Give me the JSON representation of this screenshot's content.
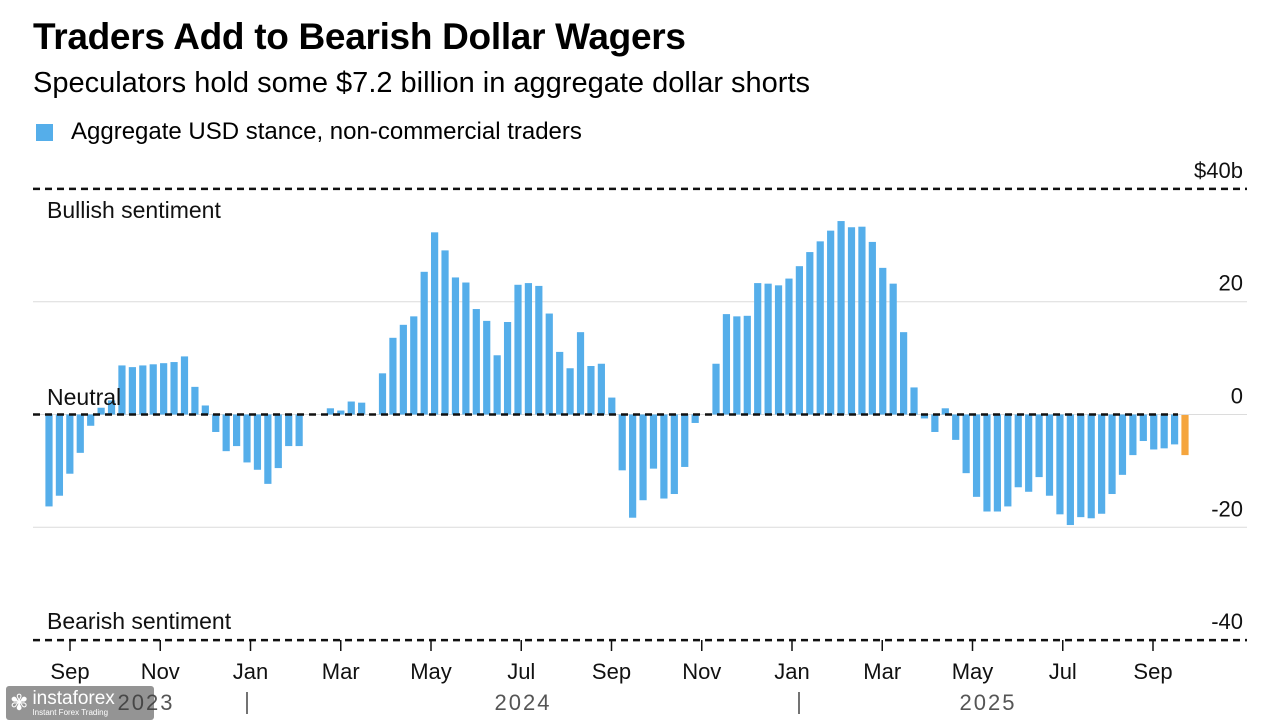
{
  "header": {
    "title": "Traders Add to Bearish Dollar Wagers",
    "subtitle": "Speculators hold some $7.2 billion in aggregate dollar shorts"
  },
  "legend": {
    "label": "Aggregate USD stance, non-commercial traders",
    "color": "#55aeea"
  },
  "watermark": {
    "brand": "instaforex",
    "tagline": "Instant Forex Trading"
  },
  "chart_data": {
    "type": "bar",
    "ylim": [
      -40,
      40
    ],
    "y_ticks": [
      {
        "value": 40,
        "label": "$40b"
      },
      {
        "value": 20,
        "label": "20"
      },
      {
        "value": 0,
        "label": "0"
      },
      {
        "value": -20,
        "label": "-20"
      },
      {
        "value": -40,
        "label": "-40"
      }
    ],
    "annotations": [
      {
        "id": "bullish",
        "text": "Bullish sentiment",
        "y": 40
      },
      {
        "id": "neutral",
        "text": "Neutral",
        "y": 0
      },
      {
        "id": "bearish",
        "text": "Bearish sentiment",
        "y": -40
      }
    ],
    "x_ticks": [
      "Sep",
      "Nov",
      "Jan",
      "Mar",
      "May",
      "Jul",
      "Sep",
      "Nov",
      "Jan",
      "Mar",
      "May",
      "Jul",
      "Sep"
    ],
    "year_labels": [
      "2023",
      "2024",
      "2025"
    ],
    "colors": {
      "series": "#55aeea",
      "latest": "#f5a53d"
    },
    "values": [
      -16.3,
      -14.4,
      -10.5,
      -6.8,
      -2.0,
      1.2,
      2.5,
      8.7,
      8.4,
      8.7,
      8.9,
      9.1,
      9.3,
      10.3,
      4.9,
      1.6,
      -3.1,
      -6.5,
      -5.6,
      -8.5,
      -9.8,
      -12.3,
      -9.5,
      -5.6,
      -5.6,
      0.0,
      0.0,
      1.1,
      0.7,
      2.3,
      2.1,
      0.0,
      7.3,
      13.6,
      15.9,
      17.4,
      25.3,
      32.3,
      29.1,
      24.3,
      23.4,
      18.7,
      16.6,
      10.5,
      16.4,
      23.0,
      23.3,
      22.8,
      17.9,
      11.1,
      8.2,
      14.6,
      8.6,
      9.0,
      3.0,
      -9.9,
      -18.3,
      -15.2,
      -9.6,
      -14.9,
      -14.1,
      -9.3,
      -1.5,
      0.0,
      9.0,
      17.8,
      17.4,
      17.5,
      23.3,
      23.2,
      22.9,
      24.1,
      26.3,
      28.8,
      30.7,
      32.6,
      34.3,
      33.2,
      33.3,
      30.6,
      26.0,
      23.2,
      14.6,
      4.8,
      -0.7,
      -3.1,
      1.1,
      -4.5,
      -10.4,
      -14.6,
      -17.2,
      -17.2,
      -16.3,
      -12.9,
      -13.7,
      -11.1,
      -14.4,
      -17.7,
      -19.6,
      -18.2,
      -18.4,
      -17.6,
      -14.1,
      -10.7,
      -7.2,
      -4.7,
      -6.2,
      -6.0,
      -5.3,
      -7.2
    ]
  }
}
